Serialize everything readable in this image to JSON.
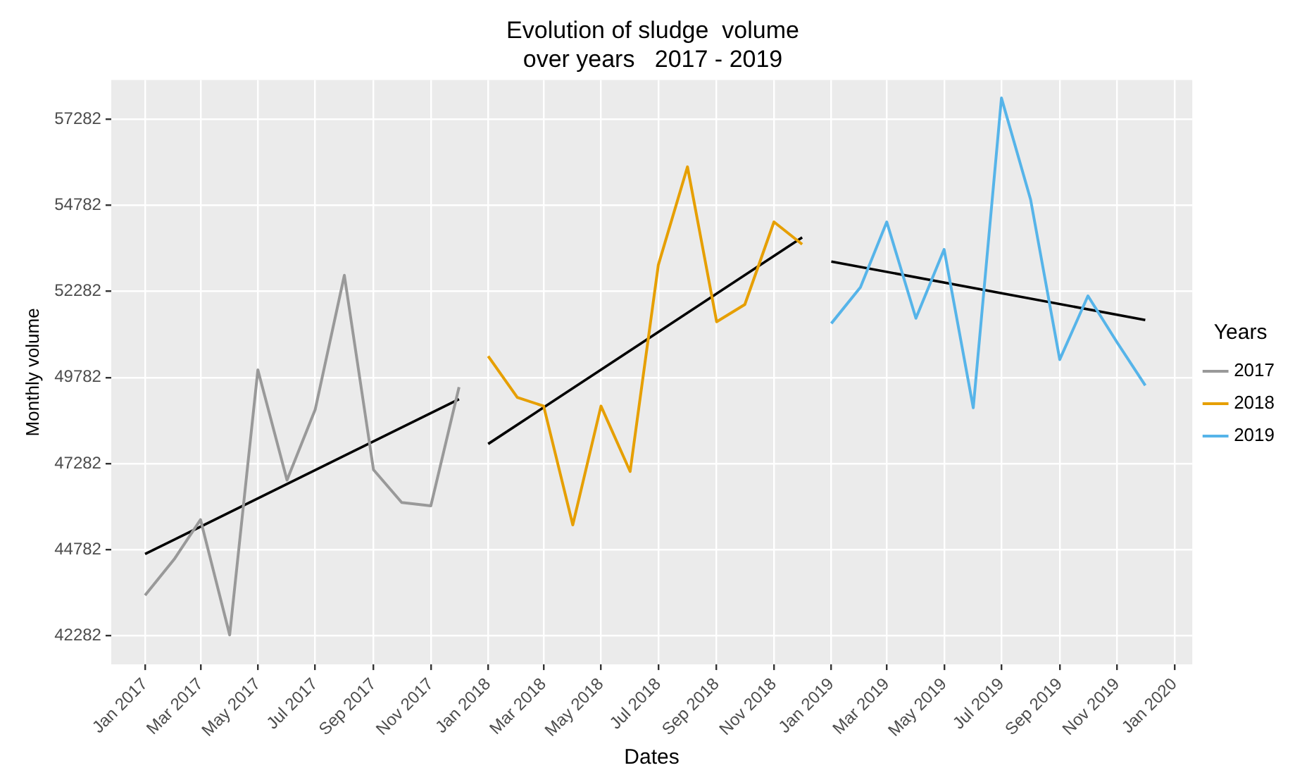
{
  "chart_data": {
    "type": "line",
    "title": "Evolution of sludge  volume\nover years   2017 - 2019",
    "xlabel": "Dates",
    "ylabel": "Monthly volume",
    "legend_title": "Years",
    "legend": "right",
    "grid": true,
    "marker": "none",
    "line_style": "solid",
    "ylim": [
      41444,
      58422
    ],
    "yticks": [
      42282,
      44782,
      47282,
      49782,
      52282,
      54782,
      57282
    ],
    "xlim": [
      "2016-11-26",
      "2020-01-20"
    ],
    "xticks": [
      {
        "value": "2017-01",
        "label": "Jan 2017"
      },
      {
        "value": "2017-03",
        "label": "Mar 2017"
      },
      {
        "value": "2017-05",
        "label": "May 2017"
      },
      {
        "value": "2017-07",
        "label": "Jul 2017"
      },
      {
        "value": "2017-09",
        "label": "Sep 2017"
      },
      {
        "value": "2017-11",
        "label": "Nov 2017"
      },
      {
        "value": "2018-01",
        "label": "Jan 2018"
      },
      {
        "value": "2018-03",
        "label": "Mar 2018"
      },
      {
        "value": "2018-05",
        "label": "May 2018"
      },
      {
        "value": "2018-07",
        "label": "Jul 2018"
      },
      {
        "value": "2018-09",
        "label": "Sep 2018"
      },
      {
        "value": "2018-11",
        "label": "Nov 2018"
      },
      {
        "value": "2019-01",
        "label": "Jan 2019"
      },
      {
        "value": "2019-03",
        "label": "Mar 2019"
      },
      {
        "value": "2019-05",
        "label": "May 2019"
      },
      {
        "value": "2019-07",
        "label": "Jul 2019"
      },
      {
        "value": "2019-09",
        "label": "Sep 2019"
      },
      {
        "value": "2019-11",
        "label": "Nov 2019"
      },
      {
        "value": "2020-01",
        "label": "Jan 2020"
      }
    ],
    "series": [
      {
        "name": "2017",
        "color": "#999999",
        "x": [
          "2017-01",
          "2017-02",
          "2017-03",
          "2017-04",
          "2017-05",
          "2017-06",
          "2017-07",
          "2017-08",
          "2017-09",
          "2017-10",
          "2017-11",
          "2017-12"
        ],
        "values": [
          43450,
          44500,
          45650,
          42300,
          50000,
          46800,
          48850,
          52750,
          47100,
          46150,
          46050,
          49500
        ]
      },
      {
        "name": "2018",
        "color": "#e69f00",
        "x": [
          "2018-01",
          "2018-02",
          "2018-03",
          "2018-04",
          "2018-05",
          "2018-06",
          "2018-07",
          "2018-08",
          "2018-09",
          "2018-10",
          "2018-11",
          "2018-12"
        ],
        "values": [
          50400,
          49200,
          48950,
          45500,
          48950,
          47050,
          53050,
          55900,
          51400,
          51900,
          54300,
          53650
        ]
      },
      {
        "name": "2019",
        "color": "#56b4e9",
        "x": [
          "2019-01",
          "2019-02",
          "2019-03",
          "2019-04",
          "2019-05",
          "2019-06",
          "2019-07",
          "2019-08",
          "2019-09",
          "2019-10",
          "2019-11",
          "2019-12"
        ],
        "values": [
          51350,
          52400,
          54300,
          51500,
          53500,
          48900,
          57900,
          54950,
          50300,
          52150,
          50800,
          49550
        ]
      },
      {
        "type": "line",
        "color": "#000000",
        "x": [
          "2017-01",
          "2017-12"
        ],
        "values": [
          44650,
          49150
        ]
      },
      {
        "type": "line",
        "color": "#000000",
        "x": [
          "2018-01",
          "2018-12"
        ],
        "values": [
          47850,
          53850
        ]
      },
      {
        "type": "line",
        "color": "#000000",
        "x": [
          "2019-01",
          "2019-12"
        ],
        "values": [
          53150,
          51450
        ]
      }
    ]
  }
}
